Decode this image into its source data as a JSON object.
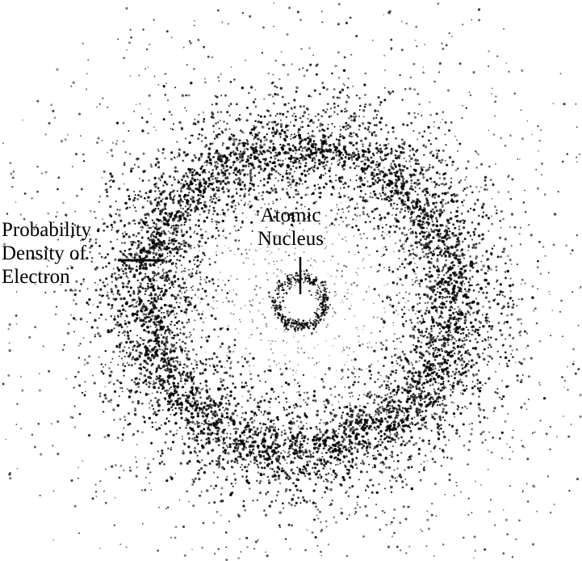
{
  "labels": {
    "density": {
      "line1": "Probability",
      "line2": "Density of",
      "line3": "Electron"
    },
    "nucleus": {
      "line1": "Atomic",
      "line2": "Nucleus"
    }
  },
  "colors": {
    "background": "#ffffff",
    "dots": "#000000"
  }
}
